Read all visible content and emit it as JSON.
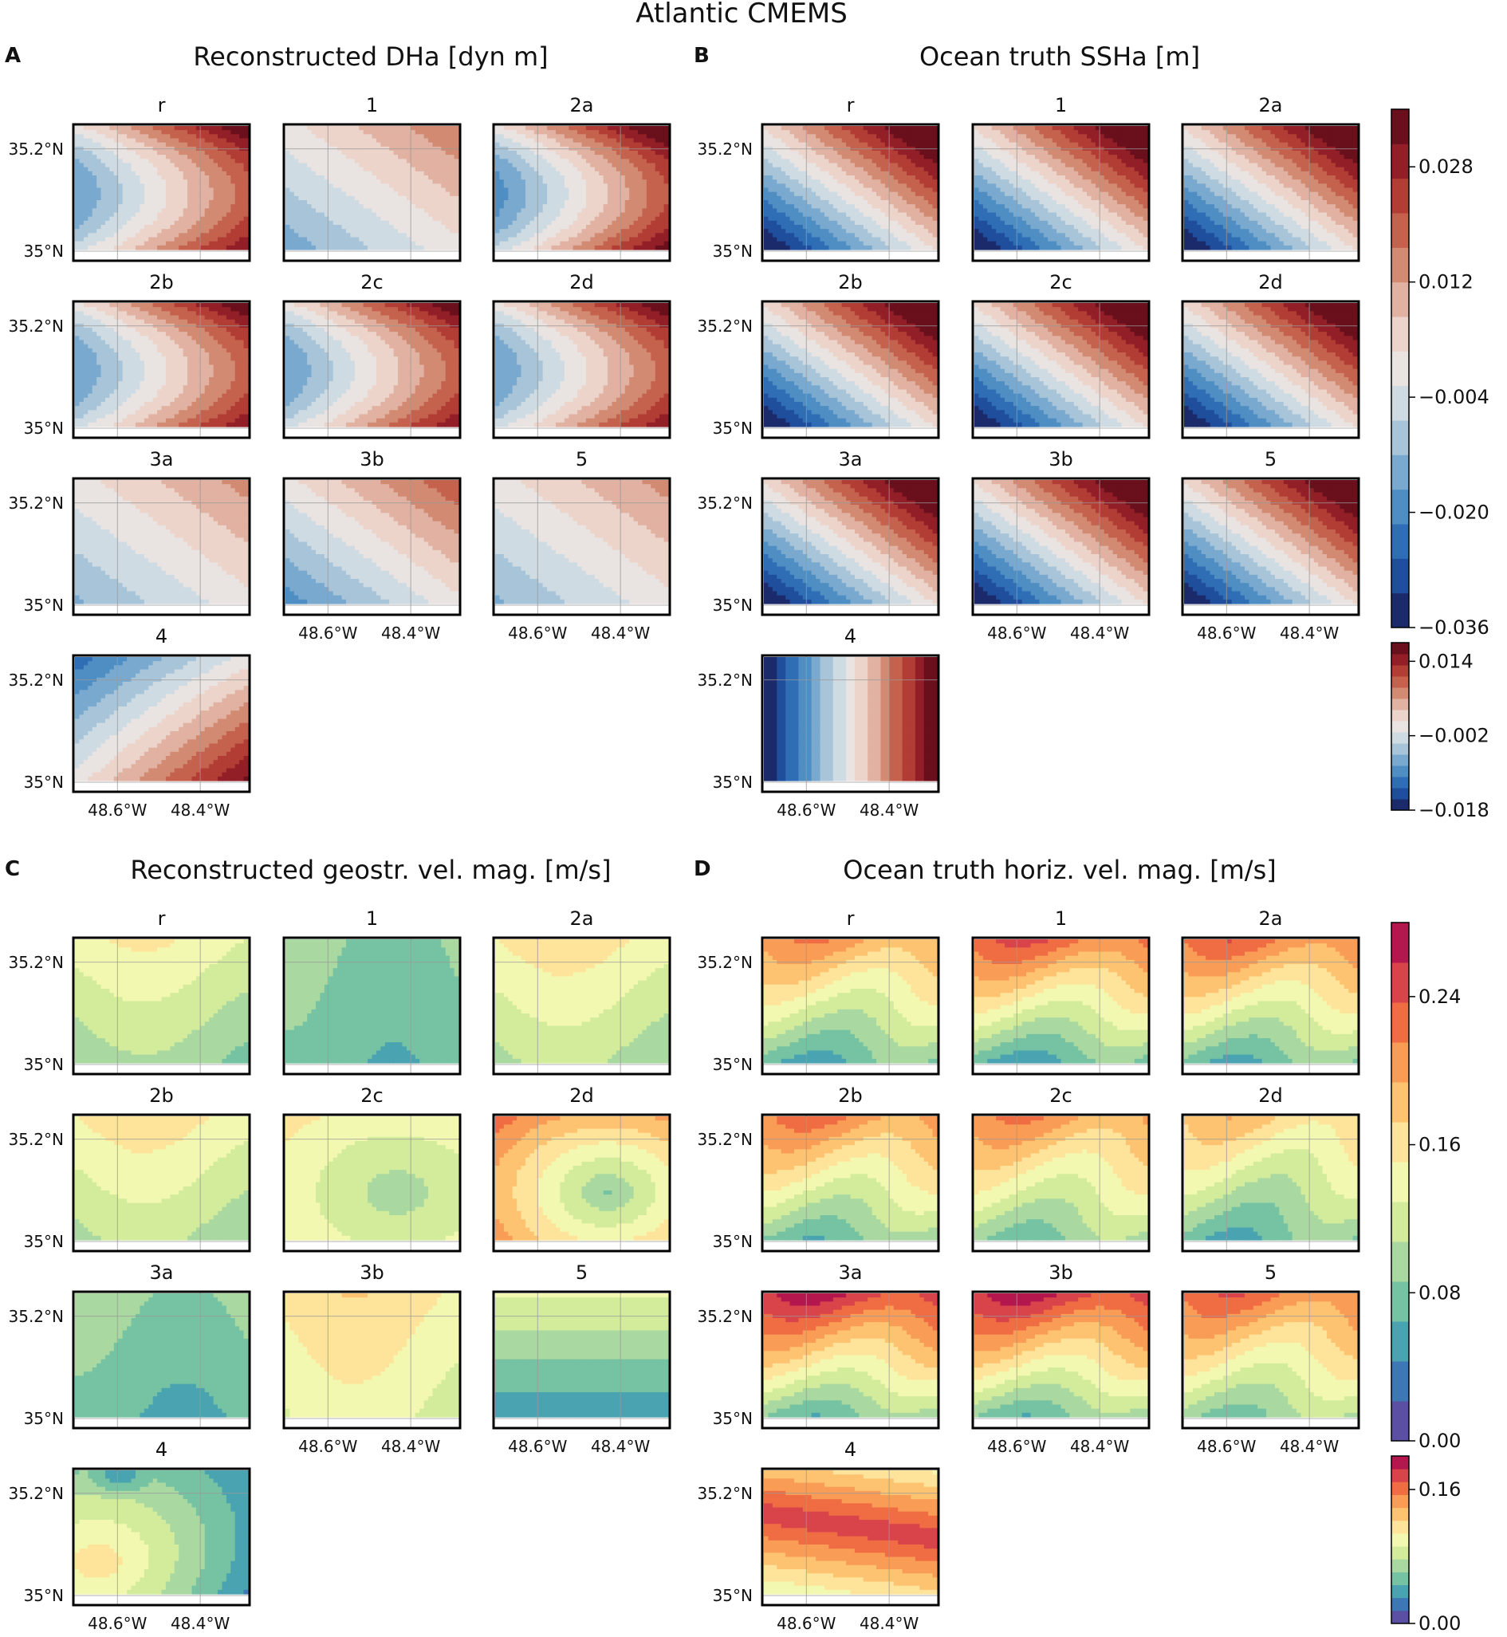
{
  "figure_title": "Atlantic CMEMS",
  "axis": {
    "lat_labels": [
      "35.2°N",
      "35°N"
    ],
    "lon_labels": [
      "48.6°W",
      "48.4°W"
    ]
  },
  "colors": {
    "rdbu": [
      "#1b2a6b",
      "#1f4e9c",
      "#2f6eb4",
      "#4f8ec2",
      "#7aa9cf",
      "#a8c4d8",
      "#cfdbe3",
      "#e9e4e1",
      "#ecd4cb",
      "#e1b1a2",
      "#d28a73",
      "#c4624e",
      "#b23d35",
      "#921f27",
      "#6a0f1c"
    ],
    "spectral": [
      "#5a4fa2",
      "#3d77b5",
      "#4aa3b0",
      "#76c3a4",
      "#a9d9a0",
      "#d2ec9c",
      "#f3f8b0",
      "#fde49a",
      "#fdc371",
      "#f99c55",
      "#f06d43",
      "#d9444b",
      "#b3174d"
    ]
  },
  "chart_data": [
    {
      "id": "A",
      "type": "heatmap",
      "panel_letter": "A",
      "title": "Reconstructed DHa [dyn m]",
      "colormap": "rdbu",
      "vrange": [
        -0.036,
        0.036
      ],
      "subplots": [
        {
          "label": "r",
          "pattern": "curved",
          "shift": 0.0,
          "amp": 0.018
        },
        {
          "label": "1",
          "pattern": "diagonal",
          "shift": 0.0,
          "amp": 0.014
        },
        {
          "label": "2a",
          "pattern": "curved",
          "shift": 0.0,
          "amp": 0.02
        },
        {
          "label": "2b",
          "pattern": "curved",
          "shift": 0.0,
          "amp": 0.018
        },
        {
          "label": "2c",
          "pattern": "curved",
          "shift": 0.0,
          "amp": 0.018
        },
        {
          "label": "2d",
          "pattern": "curved",
          "shift": 0.0,
          "amp": 0.018
        },
        {
          "label": "3a",
          "pattern": "diagonal",
          "shift": 0.0,
          "amp": 0.012
        },
        {
          "label": "3b",
          "pattern": "diagonal",
          "shift": 0.0,
          "amp": 0.018
        },
        {
          "label": "5",
          "pattern": "diagonal",
          "shift": 0.0,
          "amp": 0.012
        },
        {
          "label": "4",
          "pattern": "corner",
          "shift": 0.0,
          "amp": 0.02
        }
      ],
      "colorbar_ticks": [
        0.028,
        0.012,
        -0.004,
        -0.02,
        -0.036
      ],
      "colorbar_tick_labels": [
        "0.028",
        "0.012",
        "−0.004",
        "−0.020",
        "−0.036"
      ]
    },
    {
      "id": "B",
      "type": "heatmap",
      "panel_letter": "B",
      "title": "Ocean truth SSHa [m]",
      "colormap": "rdbu",
      "vrange": [
        -0.036,
        0.036
      ],
      "subplots": [
        {
          "label": "r",
          "pattern": "diagonal_strong",
          "amp": 0.032
        },
        {
          "label": "1",
          "pattern": "diagonal_strong",
          "amp": 0.032
        },
        {
          "label": "2a",
          "pattern": "diagonal_strong",
          "amp": 0.032
        },
        {
          "label": "2b",
          "pattern": "diagonal_strong",
          "amp": 0.032
        },
        {
          "label": "2c",
          "pattern": "diagonal_strong",
          "amp": 0.032
        },
        {
          "label": "2d",
          "pattern": "diagonal_strong",
          "amp": 0.032
        },
        {
          "label": "3a",
          "pattern": "diagonal_strong",
          "amp": 0.032
        },
        {
          "label": "3b",
          "pattern": "diagonal_strong",
          "amp": 0.032
        },
        {
          "label": "5",
          "pattern": "diagonal_strong",
          "amp": 0.032
        },
        {
          "label": "4",
          "pattern": "vertical_bands",
          "amp": 0.016
        }
      ],
      "colorbar_ticks": [
        0.028,
        0.012,
        -0.004,
        -0.02,
        -0.036
      ],
      "colorbar_tick_labels": [
        "0.028",
        "0.012",
        "−0.004",
        "−0.020",
        "−0.036"
      ],
      "colorbar2_range": [
        -0.018,
        0.018
      ],
      "colorbar2_ticks": [
        0.014,
        -0.002,
        -0.018
      ],
      "colorbar2_tick_labels": [
        "0.014",
        "−0.002",
        "−0.018"
      ]
    },
    {
      "id": "C",
      "type": "heatmap",
      "panel_letter": "C",
      "title": "Reconstructed geostr. vel. mag. [m/s]",
      "colormap": "spectral",
      "vrange": [
        0.0,
        0.28
      ],
      "subplots": [
        {
          "label": "r",
          "pattern": "vel_soft",
          "base": 0.11,
          "amp": 0.05
        },
        {
          "label": "1",
          "pattern": "vel_flat",
          "base": 0.08,
          "amp": 0.02
        },
        {
          "label": "2a",
          "pattern": "vel_soft",
          "base": 0.12,
          "amp": 0.05
        },
        {
          "label": "2b",
          "pattern": "vel_soft",
          "base": 0.12,
          "amp": 0.05
        },
        {
          "label": "2c",
          "pattern": "vel_bowl",
          "base": 0.12,
          "amp": 0.04
        },
        {
          "label": "2d",
          "pattern": "vel_bowl",
          "base": 0.14,
          "amp": 0.09
        },
        {
          "label": "3a",
          "pattern": "vel_flat",
          "base": 0.08,
          "amp": 0.03
        },
        {
          "label": "3b",
          "pattern": "vel_soft",
          "base": 0.14,
          "amp": 0.03
        },
        {
          "label": "5",
          "pattern": "vel_grad",
          "base": 0.09,
          "amp": 0.05
        },
        {
          "label": "4",
          "pattern": "vel_blob",
          "base": 0.12,
          "amp": 0.06
        }
      ],
      "colorbar_ticks": [
        0.24,
        0.16,
        0.08,
        0.0
      ],
      "colorbar_tick_labels": [
        "0.24",
        "0.16",
        "0.08",
        "0.00"
      ]
    },
    {
      "id": "D",
      "type": "heatmap",
      "panel_letter": "D",
      "title": "Ocean truth horiz. vel. mag. [m/s]",
      "colormap": "spectral",
      "vrange": [
        0.0,
        0.28
      ],
      "subplots": [
        {
          "label": "r",
          "pattern": "vel_top",
          "base": 0.13,
          "amp": 0.09
        },
        {
          "label": "1",
          "pattern": "vel_top",
          "base": 0.14,
          "amp": 0.11
        },
        {
          "label": "2a",
          "pattern": "vel_top",
          "base": 0.14,
          "amp": 0.1
        },
        {
          "label": "2b",
          "pattern": "vel_top",
          "base": 0.14,
          "amp": 0.09
        },
        {
          "label": "2c",
          "pattern": "vel_top",
          "base": 0.14,
          "amp": 0.08
        },
        {
          "label": "2d",
          "pattern": "vel_top",
          "base": 0.12,
          "amp": 0.07
        },
        {
          "label": "3a",
          "pattern": "vel_top",
          "base": 0.16,
          "amp": 0.12
        },
        {
          "label": "3b",
          "pattern": "vel_top",
          "base": 0.16,
          "amp": 0.12
        },
        {
          "label": "5",
          "pattern": "vel_top",
          "base": 0.15,
          "amp": 0.09
        },
        {
          "label": "4",
          "pattern": "vel_band",
          "base": 0.13,
          "amp": 0.06
        }
      ],
      "colorbar_ticks": [
        0.24,
        0.16,
        0.08,
        0.0
      ],
      "colorbar_tick_labels": [
        "0.24",
        "0.16",
        "0.08",
        "0.00"
      ],
      "colorbar2_range": [
        0.0,
        0.2
      ],
      "colorbar2_ticks": [
        0.16,
        0.0
      ],
      "colorbar2_tick_labels": [
        "0.16",
        "0.00"
      ]
    }
  ]
}
